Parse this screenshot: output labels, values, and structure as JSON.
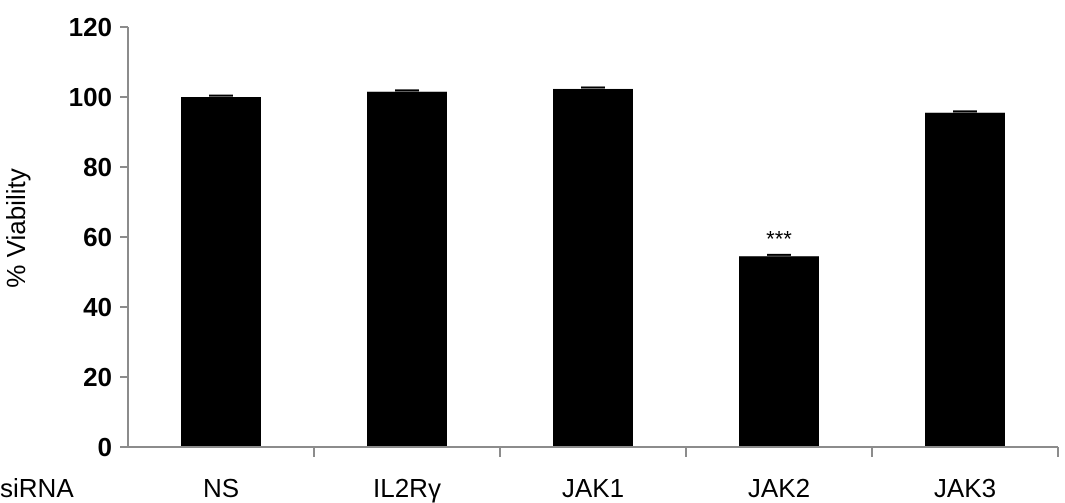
{
  "chart_data": {
    "type": "bar",
    "title": "",
    "xlabel": "siRNA",
    "ylabel": "% Viability",
    "ylim": [
      0,
      120
    ],
    "yticks": [
      0,
      20,
      40,
      60,
      80,
      100,
      120
    ],
    "categories": [
      "NS",
      "IL2Rγ",
      "JAK1",
      "JAK2",
      "JAK3"
    ],
    "values": [
      100,
      101.5,
      102.3,
      54.5,
      95.5
    ],
    "errors": [
      0.4,
      0.4,
      0.4,
      0.4,
      0.4
    ],
    "annotations": [
      "",
      "",
      "",
      "***",
      ""
    ],
    "bar_color": "#000000",
    "axis_color": "#8c8c8c",
    "grid": false,
    "legend": "none"
  }
}
